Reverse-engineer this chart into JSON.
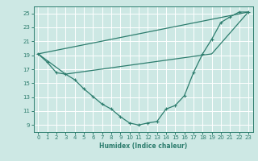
{
  "xlabel": "Humidex (Indice chaleur)",
  "background_color": "#cde8e4",
  "grid_color": "#ffffff",
  "line_color": "#2d7d6e",
  "xlim": [
    -0.5,
    23.5
  ],
  "ylim": [
    8.0,
    26.0
  ],
  "xticks": [
    0,
    1,
    2,
    3,
    4,
    5,
    6,
    7,
    8,
    9,
    10,
    11,
    12,
    13,
    14,
    15,
    16,
    17,
    18,
    19,
    20,
    21,
    22,
    23
  ],
  "yticks": [
    9,
    11,
    13,
    15,
    17,
    19,
    21,
    23,
    25
  ],
  "curve1_x": [
    0,
    1,
    2,
    3,
    4,
    5,
    6,
    7,
    8,
    9,
    10,
    11,
    12,
    13,
    14,
    15,
    16,
    17,
    18,
    19,
    20,
    21,
    22,
    23
  ],
  "curve1_y": [
    19.2,
    18.0,
    16.5,
    16.3,
    15.5,
    14.2,
    13.1,
    12.0,
    11.3,
    10.2,
    9.3,
    9.0,
    9.3,
    9.5,
    11.3,
    11.8,
    13.2,
    16.5,
    19.2,
    21.3,
    23.7,
    24.5,
    25.2,
    25.2
  ],
  "line2_x": [
    0,
    23
  ],
  "line2_y": [
    19.2,
    25.2
  ],
  "line3_x": [
    0,
    3,
    19,
    23
  ],
  "line3_y": [
    19.2,
    16.3,
    19.2,
    25.2
  ],
  "marker_size": 2.5,
  "linewidth": 0.9
}
